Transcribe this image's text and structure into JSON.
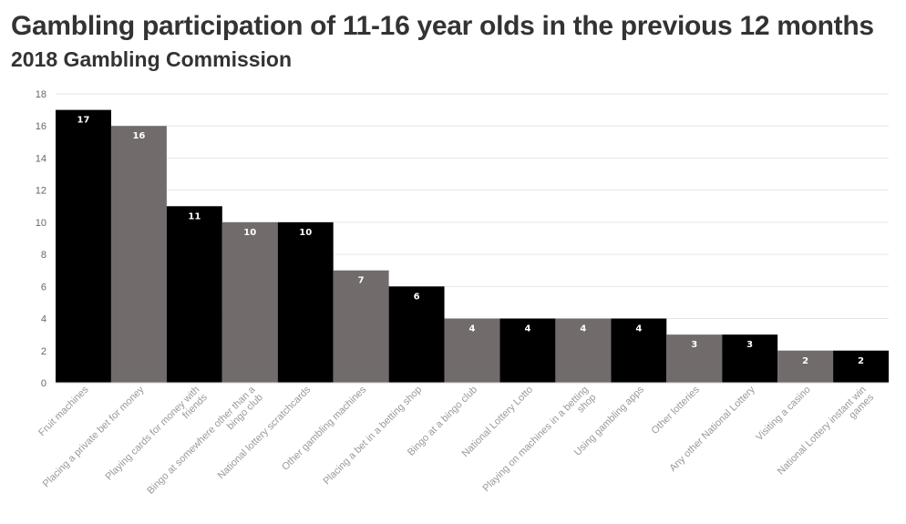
{
  "header": {
    "title": "Gambling participation of 11-16 year olds in the previous 12 months",
    "subtitle": "2018 Gambling Commission"
  },
  "chart_data": {
    "type": "bar",
    "title": "Gambling participation of 11-16 year olds in the previous 12 months",
    "subtitle": "2018 Gambling Commission",
    "xlabel": "",
    "ylabel": "",
    "ylim": [
      0,
      18
    ],
    "yticks": [
      0,
      2,
      4,
      6,
      8,
      10,
      12,
      14,
      16,
      18
    ],
    "grid": true,
    "categories": [
      "Fruit machines",
      "Placing a private bet for money",
      "Playing cards for money with friends",
      "Bingo at somewhere other than a bingo club",
      "National lottery scratchcards",
      "Other gambling machines",
      "Placing a bet in a betting shop",
      "Bingo at a bingo club",
      "National Lottery Lotto",
      "Playing on machines in a betting shop",
      "Using gambling apps",
      "Other lotteries",
      "Any other National Lottery",
      "Visiting a casino",
      "National Lottery instant win games"
    ],
    "values": [
      17,
      16,
      11,
      10,
      10,
      7,
      6,
      4,
      4,
      4,
      4,
      3,
      3,
      2,
      2
    ],
    "colors": [
      "#000000",
      "#716b6b"
    ],
    "data_labels": true
  }
}
